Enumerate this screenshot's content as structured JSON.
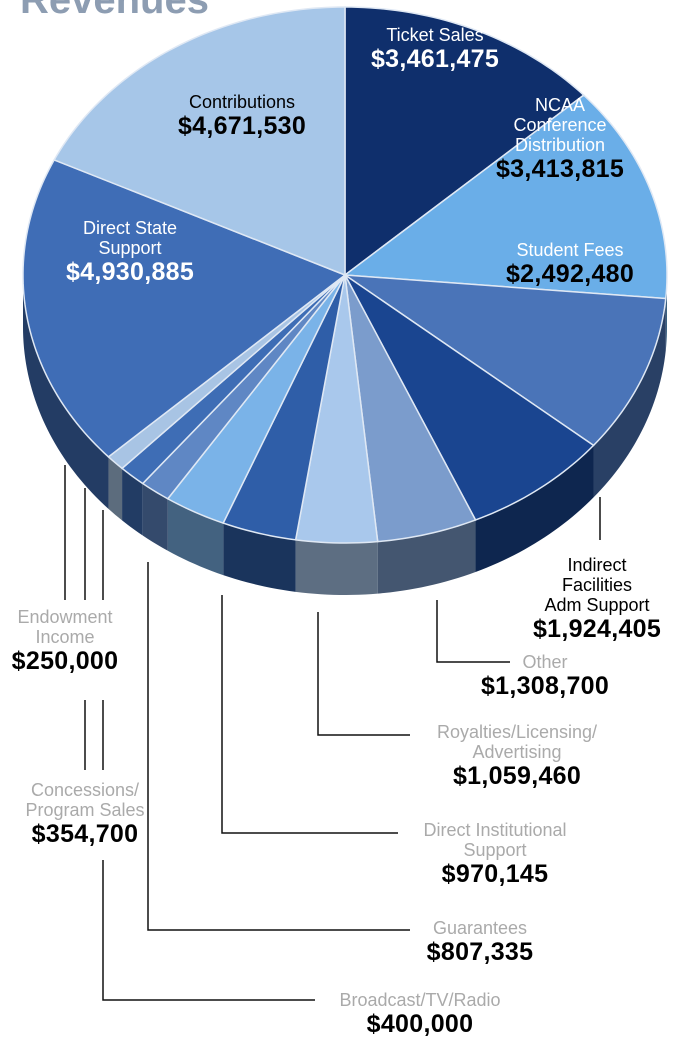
{
  "chart_data": {
    "type": "pie",
    "title": "Revenues",
    "categories": [
      "Ticket Sales",
      "NCAA\nConference\nDistribution",
      "Student Fees",
      "Indirect Facilities\nAdm Support",
      "Other",
      "Royalties/Licensing/\nAdvertising",
      "Direct Institutional\nSupport",
      "Guarantees",
      "Broadcast/TV/Radio",
      "Concessions/\nProgram Sales",
      "Endowment\nIncome",
      "Direct State\nSupport",
      "Contributions"
    ],
    "values": [
      3461475,
      3413815,
      2492480,
      1924405,
      1308700,
      1059460,
      970145,
      807335,
      400000,
      354700,
      250000,
      4930885,
      4671530
    ],
    "value_labels": [
      "$3,461,475",
      "$3,413,815",
      "$2,492,480",
      "$1,924,405",
      "$1,308,700",
      "$1,059,460",
      "$970,145",
      "$807,335",
      "$400,000",
      "$354,700",
      "$250,000",
      "$4,930,885",
      "$4,671,530"
    ],
    "colors": [
      "#0f2f6c",
      "#6aaee8",
      "#4a74b8",
      "#1a4590",
      "#7b9ccc",
      "#a9c8ec",
      "#2f5ea8",
      "#7ab3e8",
      "#5f87c4",
      "#3e6db5",
      "#a8c4e4",
      "#3f6db6",
      "#a6c6e8"
    ]
  }
}
